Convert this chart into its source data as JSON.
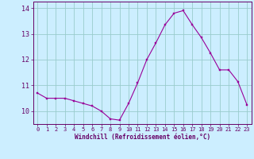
{
  "x": [
    0,
    1,
    2,
    3,
    4,
    5,
    6,
    7,
    8,
    9,
    10,
    11,
    12,
    13,
    14,
    15,
    16,
    17,
    18,
    19,
    20,
    21,
    22,
    23
  ],
  "y": [
    10.7,
    10.5,
    10.5,
    10.5,
    10.4,
    10.3,
    10.2,
    10.0,
    9.7,
    9.65,
    10.3,
    11.1,
    12.0,
    12.65,
    13.35,
    13.8,
    13.9,
    13.35,
    12.85,
    12.25,
    11.6,
    11.6,
    11.15,
    10.25
  ],
  "line_color": "#990099",
  "marker": "s",
  "marker_size": 2.0,
  "bg_color": "#cceeff",
  "grid_color": "#99cccc",
  "xlabel": "Windchill (Refroidissement éolien,°C)",
  "xlabel_color": "#660066",
  "tick_color": "#660066",
  "ylim": [
    9.5,
    14.25
  ],
  "yticks": [
    10,
    11,
    12,
    13,
    14
  ],
  "xlim": [
    -0.5,
    23.5
  ],
  "xticks": [
    0,
    1,
    2,
    3,
    4,
    5,
    6,
    7,
    8,
    9,
    10,
    11,
    12,
    13,
    14,
    15,
    16,
    17,
    18,
    19,
    20,
    21,
    22,
    23
  ]
}
